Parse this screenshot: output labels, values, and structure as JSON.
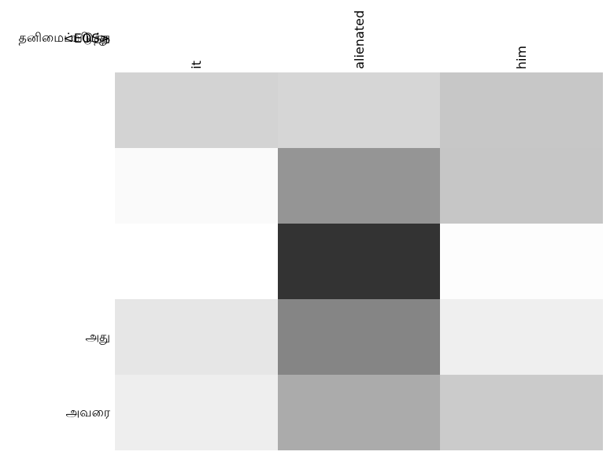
{
  "chart_data": {
    "type": "heatmap",
    "title": "",
    "xlabel": "",
    "ylabel": "",
    "x_categories": [
      "it",
      "alienated",
      "him"
    ],
    "y_categories": [
      "அது",
      "அவரை",
      "தனிமைப்படுத்த",
      "ியது",
      "<EOS>"
    ],
    "values": [
      [
        0.17,
        0.16,
        0.22
      ],
      [
        0.02,
        0.42,
        0.22
      ],
      [
        0.0,
        0.8,
        0.01
      ],
      [
        0.1,
        0.48,
        0.06
      ],
      [
        0.07,
        0.33,
        0.2
      ]
    ],
    "cell_colors": [
      [
        "#d3d3d3",
        "#d6d6d6",
        "#c7c7c7"
      ],
      [
        "#fafafa",
        "#959595",
        "#c6c6c6"
      ],
      [
        "#ffffff",
        "#333333",
        "#fdfdfd"
      ],
      [
        "#e6e6e6",
        "#858585",
        "#efefef"
      ],
      [
        "#eeeeee",
        "#ababab",
        "#cbcbcb"
      ]
    ],
    "colormap": "grayscale, darker = higher value",
    "x_tick_rotation_deg": 90,
    "grid_lines": false,
    "legend": "none",
    "background_color": "#ffffff"
  }
}
